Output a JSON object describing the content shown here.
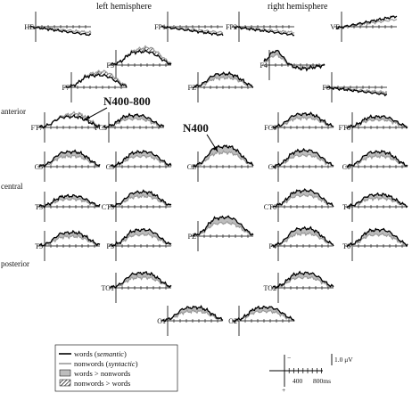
{
  "chart_data": {
    "type": "line",
    "headers": {
      "left": "left hemisphere",
      "right": "right hemisphere"
    },
    "region_labels": {
      "anterior": "anterior",
      "central": "central",
      "posterior": "posterior"
    },
    "annotations": {
      "n400_800": "N400-800",
      "n400": "N400"
    },
    "x_range_ms": [
      -100,
      900
    ],
    "polarity_note": "negative up",
    "series": [
      {
        "name": "words (semantic)",
        "color": "#000000"
      },
      {
        "name": "nonwords (syntactic)",
        "color": "#9a9a9a"
      }
    ],
    "legend": {
      "items": [
        {
          "prefix": "words (",
          "italic": "semantic",
          "suffix": ")",
          "kind": "line",
          "color": "#000000"
        },
        {
          "prefix": "nonwords (",
          "italic": "syntactic",
          "suffix": ")",
          "kind": "line",
          "color": "#9a9a9a"
        },
        {
          "prefix": "words > nonwords",
          "italic": "",
          "suffix": "",
          "kind": "fill",
          "color": "#bdbdbd"
        },
        {
          "prefix": "nonwords > words",
          "italic": "",
          "suffix": "",
          "kind": "hatch",
          "color": "#000000"
        }
      ]
    },
    "scale": {
      "minus": "−",
      "plus": "+",
      "amplitude": "1.0 μV",
      "t400": "400",
      "t800": "800ms"
    },
    "electrodes": [
      {
        "label": "HE",
        "wave": "falling",
        "amp": 0.8,
        "fill": "none"
      },
      {
        "label": "FP1",
        "wave": "falling",
        "amp": 0.8,
        "fill": "none"
      },
      {
        "label": "FP2",
        "wave": "falling",
        "amp": 0.8,
        "fill": "none"
      },
      {
        "label": "VE",
        "wave": "rising",
        "amp": 0.9,
        "fill": "none"
      },
      {
        "label": "F3",
        "wave": "n400",
        "amp": 1.0,
        "fill": "hatch"
      },
      {
        "label": "F4",
        "wave": "early",
        "amp": 1.0,
        "fill": "gray"
      },
      {
        "label": "F7",
        "wave": "n400",
        "amp": 0.9,
        "fill": "hatch"
      },
      {
        "label": "FZ",
        "wave": "n400",
        "amp": 1.0,
        "fill": "gray"
      },
      {
        "label": "F8",
        "wave": "falling",
        "amp": 0.7,
        "fill": "gray"
      },
      {
        "label": "FT7",
        "wave": "n400",
        "amp": 0.8,
        "fill": "hatch"
      },
      {
        "label": "FC5",
        "wave": "n400",
        "amp": 0.9,
        "fill": "gray"
      },
      {
        "label": "FC6",
        "wave": "n400",
        "amp": 1.0,
        "fill": "gray"
      },
      {
        "label": "FT8",
        "wave": "n400",
        "amp": 0.8,
        "fill": "gray"
      },
      {
        "label": "C5",
        "wave": "n400",
        "amp": 1.1,
        "fill": "gray"
      },
      {
        "label": "C3",
        "wave": "n400",
        "amp": 1.1,
        "fill": "gray"
      },
      {
        "label": "CZ",
        "wave": "n400",
        "amp": 1.5,
        "fill": "gray"
      },
      {
        "label": "C4",
        "wave": "n400",
        "amp": 1.2,
        "fill": "gray"
      },
      {
        "label": "C6",
        "wave": "n400",
        "amp": 1.1,
        "fill": "gray"
      },
      {
        "label": "T3",
        "wave": "n400",
        "amp": 0.8,
        "fill": "gray"
      },
      {
        "label": "CT5",
        "wave": "n400",
        "amp": 1.1,
        "fill": "gray"
      },
      {
        "label": "CT6",
        "wave": "n400",
        "amp": 1.2,
        "fill": "gray"
      },
      {
        "label": "T4",
        "wave": "n400",
        "amp": 0.9,
        "fill": "gray"
      },
      {
        "label": "PZ",
        "wave": "n400",
        "amp": 1.4,
        "fill": "gray"
      },
      {
        "label": "T5",
        "wave": "n400",
        "amp": 1.0,
        "fill": "gray"
      },
      {
        "label": "P3",
        "wave": "n400",
        "amp": 1.2,
        "fill": "gray"
      },
      {
        "label": "P4",
        "wave": "n400",
        "amp": 1.3,
        "fill": "gray"
      },
      {
        "label": "T6",
        "wave": "n400",
        "amp": 1.2,
        "fill": "gray"
      },
      {
        "label": "TO1",
        "wave": "n400",
        "amp": 1.1,
        "fill": "gray"
      },
      {
        "label": "TO2",
        "wave": "n400",
        "amp": 1.1,
        "fill": "gray"
      },
      {
        "label": "O1",
        "wave": "n400",
        "amp": 1.0,
        "fill": "gray"
      },
      {
        "label": "O2",
        "wave": "n400",
        "amp": 1.0,
        "fill": "gray"
      }
    ]
  }
}
